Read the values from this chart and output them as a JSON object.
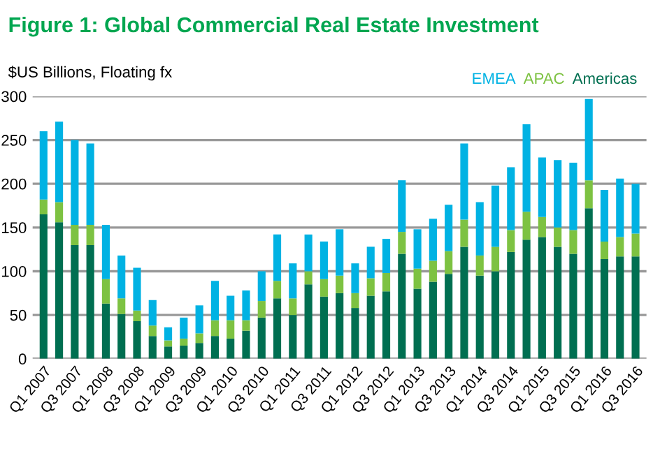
{
  "chart_data": {
    "type": "bar",
    "stacked": true,
    "title": "Figure 1: Global Commercial Real Estate Investment",
    "ylabel": "$US Billions, Floating fx",
    "categories": [
      "Q1 2007",
      null,
      "Q3 2007",
      null,
      "Q1 2008",
      null,
      "Q3 2008",
      null,
      "Q1 2009",
      null,
      "Q3 2009",
      null,
      "Q1 2010",
      null,
      "Q3 2010",
      null,
      "Q1 2011",
      null,
      "Q3 2011",
      null,
      "Q1 2012",
      null,
      "Q3 2012",
      null,
      "Q1 2013",
      null,
      "Q3 2013",
      null,
      "Q1 2014",
      null,
      "Q3 2014",
      null,
      "Q1 2015",
      null,
      "Q3 2015",
      null,
      "Q1 2016",
      null,
      "Q3 2016"
    ],
    "series": [
      {
        "name": "Americas",
        "color": "#006f51",
        "values": [
          165,
          156,
          130,
          130,
          63,
          51,
          43,
          26,
          14,
          15,
          18,
          26,
          23,
          32,
          47,
          69,
          50,
          85,
          71,
          75,
          58,
          72,
          77,
          120,
          80,
          88,
          97,
          128,
          95,
          100,
          122,
          136,
          139,
          128,
          120,
          172,
          114,
          117,
          117
        ]
      },
      {
        "name": "APAC",
        "color": "#7dc242",
        "values": [
          17,
          23,
          23,
          23,
          28,
          18,
          12,
          12,
          7,
          8,
          11,
          18,
          21,
          12,
          19,
          20,
          19,
          15,
          20,
          20,
          17,
          20,
          21,
          25,
          23,
          24,
          26,
          31,
          23,
          28,
          25,
          32,
          23,
          22,
          27,
          32,
          20,
          22,
          26
        ]
      },
      {
        "name": "EMEA",
        "color": "#00b2e3",
        "values": [
          78,
          92,
          97,
          93,
          62,
          49,
          49,
          29,
          15,
          24,
          32,
          45,
          28,
          34,
          34,
          53,
          40,
          42,
          43,
          53,
          34,
          36,
          39,
          59,
          45,
          48,
          53,
          87,
          61,
          70,
          72,
          100,
          68,
          77,
          77,
          93,
          59,
          67,
          57
        ]
      }
    ],
    "ylim": [
      0,
      300
    ],
    "yticks": [
      0,
      50,
      100,
      150,
      200,
      250,
      300
    ],
    "grid": "y",
    "legend": "top right"
  }
}
